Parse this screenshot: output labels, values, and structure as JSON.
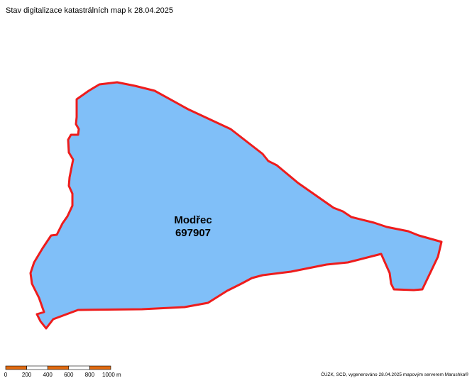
{
  "title": "Stav digitalizace katastrálních map k 28.04.2025",
  "region": {
    "name": "Modřec",
    "code": "697907"
  },
  "scale_bar": {
    "labels": [
      "0",
      "200",
      "400",
      "600",
      "800",
      "1000 m"
    ]
  },
  "credit": "ČÚZK, SCD, vygenerováno 28.04.2025 mapovým serverem Marushka®"
}
